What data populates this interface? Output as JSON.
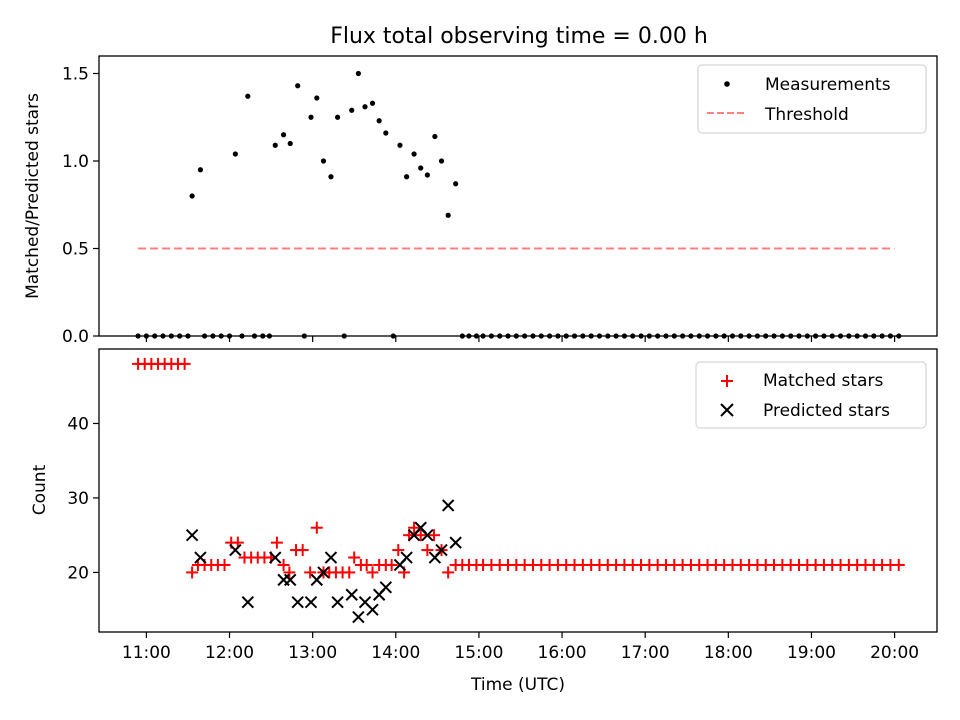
{
  "chart_data": [
    {
      "type": "scatter",
      "title": "Flux total observing time = 0.00 h",
      "xlabel": "",
      "ylabel": "Matched/Predicted stars",
      "xlim": [
        10.43,
        20.51
      ],
      "ylim": [
        0,
        1.6
      ],
      "x_tick_values": [
        11,
        12,
        13,
        14,
        15,
        16,
        17,
        18,
        19,
        20
      ],
      "y_ticks": [
        0.0,
        0.5,
        1.0,
        1.5
      ],
      "y_tick_labels": [
        "0.0",
        "0.5",
        "1.0",
        "1.5"
      ],
      "legend_position": "top-right",
      "series": [
        {
          "name": "Measurements",
          "color": "#000000",
          "marker": "dot",
          "x": [
            10.9,
            11.0,
            11.1,
            11.2,
            11.3,
            11.4,
            11.5,
            11.55,
            11.65,
            11.7,
            11.8,
            11.9,
            12.0,
            12.07,
            12.15,
            12.22,
            12.3,
            12.4,
            12.48,
            12.55,
            12.65,
            12.73,
            12.82,
            12.9,
            12.98,
            13.05,
            13.13,
            13.22,
            13.3,
            13.38,
            13.47,
            13.55,
            13.63,
            13.72,
            13.8,
            13.88,
            13.97,
            14.05,
            14.13,
            14.22,
            14.3,
            14.38,
            14.47,
            14.55,
            14.63,
            14.72,
            14.8,
            14.88,
            14.97,
            15.05,
            15.15,
            15.25,
            15.35,
            15.45,
            15.55,
            15.65,
            15.75,
            15.85,
            15.95,
            16.05,
            16.15,
            16.25,
            16.35,
            16.45,
            16.55,
            16.65,
            16.75,
            16.85,
            16.95,
            17.05,
            17.15,
            17.25,
            17.35,
            17.45,
            17.55,
            17.65,
            17.75,
            17.85,
            17.95,
            18.05,
            18.15,
            18.25,
            18.35,
            18.45,
            18.55,
            18.65,
            18.75,
            18.85,
            18.95,
            19.05,
            19.15,
            19.25,
            19.35,
            19.45,
            19.55,
            19.65,
            19.75,
            19.85,
            19.95,
            20.05
          ],
          "y": [
            0,
            0,
            0,
            0,
            0,
            0,
            0,
            0.8,
            0.95,
            0,
            0,
            0,
            0,
            1.04,
            0,
            1.37,
            0,
            0,
            0,
            1.09,
            1.15,
            1.1,
            1.43,
            0,
            1.25,
            1.36,
            1.0,
            0.91,
            1.25,
            0,
            1.29,
            1.5,
            1.31,
            1.33,
            1.23,
            1.16,
            0,
            1.09,
            0.91,
            1.04,
            0.96,
            0.92,
            1.14,
            1.0,
            0.69,
            0.87,
            0,
            0,
            0,
            0,
            0,
            0,
            0,
            0,
            0,
            0,
            0,
            0,
            0,
            0,
            0,
            0,
            0,
            0,
            0,
            0,
            0,
            0,
            0,
            0,
            0,
            0,
            0,
            0,
            0,
            0,
            0,
            0,
            0,
            0,
            0,
            0,
            0,
            0,
            0,
            0,
            0,
            0,
            0,
            0,
            0,
            0,
            0,
            0,
            0,
            0,
            0,
            0,
            0,
            0
          ]
        },
        {
          "name": "Threshold",
          "color": "#ff7f7f",
          "style": "dashed",
          "x": [
            10.9,
            20.0
          ],
          "y": [
            0.5,
            0.5
          ]
        }
      ]
    },
    {
      "type": "scatter",
      "title": "",
      "xlabel": "Time (UTC)",
      "ylabel": "Count",
      "xlim": [
        10.43,
        20.51
      ],
      "ylim": [
        12,
        50
      ],
      "x_tick_values": [
        11,
        12,
        13,
        14,
        15,
        16,
        17,
        18,
        19,
        20
      ],
      "x_tick_labels": [
        "11:00",
        "12:00",
        "13:00",
        "14:00",
        "15:00",
        "16:00",
        "17:00",
        "18:00",
        "19:00",
        "20:00"
      ],
      "y_ticks": [
        20,
        30,
        40
      ],
      "y_tick_labels": [
        "20",
        "30",
        "40"
      ],
      "legend_position": "top-right",
      "series": [
        {
          "name": "Matched stars",
          "color": "#ff0000",
          "marker": "plus",
          "x": [
            10.9,
            10.98,
            11.06,
            11.14,
            11.22,
            11.3,
            11.38,
            11.46,
            11.55,
            11.62,
            11.7,
            11.78,
            11.86,
            11.94,
            12.02,
            12.1,
            12.18,
            12.26,
            12.34,
            12.42,
            12.5,
            12.57,
            12.65,
            12.72,
            12.8,
            12.88,
            12.97,
            13.05,
            13.13,
            13.2,
            13.28,
            13.36,
            13.44,
            13.5,
            13.58,
            13.65,
            13.72,
            13.8,
            13.88,
            13.95,
            14.03,
            14.1,
            14.16,
            14.22,
            14.3,
            14.38,
            14.46,
            14.55,
            14.63,
            14.72,
            14.8,
            14.88,
            14.97,
            15.05,
            15.15,
            15.25,
            15.35,
            15.45,
            15.55,
            15.65,
            15.75,
            15.85,
            15.95,
            16.05,
            16.15,
            16.25,
            16.35,
            16.45,
            16.55,
            16.65,
            16.75,
            16.85,
            16.95,
            17.05,
            17.15,
            17.25,
            17.35,
            17.45,
            17.55,
            17.65,
            17.75,
            17.85,
            17.95,
            18.05,
            18.15,
            18.25,
            18.35,
            18.45,
            18.55,
            18.65,
            18.75,
            18.85,
            18.95,
            19.05,
            19.15,
            19.25,
            19.35,
            19.45,
            19.55,
            19.65,
            19.75,
            19.85,
            19.95,
            20.05
          ],
          "y": [
            48,
            48,
            48,
            48,
            48,
            48,
            48,
            48,
            20,
            21,
            21,
            21,
            21,
            21,
            24,
            24,
            22,
            22,
            22,
            22,
            22,
            24,
            21,
            20,
            23,
            23,
            20,
            26,
            20,
            20,
            20,
            20,
            20,
            22,
            21,
            21,
            20,
            21,
            21,
            21,
            23,
            20,
            25,
            26,
            25,
            23,
            25,
            23,
            20,
            21,
            21,
            21,
            21,
            21,
            21,
            21,
            21,
            21,
            21,
            21,
            21,
            21,
            21,
            21,
            21,
            21,
            21,
            21,
            21,
            21,
            21,
            21,
            21,
            21,
            21,
            21,
            21,
            21,
            21,
            21,
            21,
            21,
            21,
            21,
            21,
            21,
            21,
            21,
            21,
            21,
            21,
            21,
            21,
            21,
            21,
            21,
            21,
            21,
            21,
            21,
            21,
            21,
            21,
            21
          ]
        },
        {
          "name": "Predicted stars",
          "color": "#000000",
          "marker": "x",
          "x": [
            11.55,
            11.65,
            12.07,
            12.22,
            12.55,
            12.65,
            12.73,
            12.82,
            12.98,
            13.05,
            13.13,
            13.22,
            13.3,
            13.47,
            13.55,
            13.63,
            13.72,
            13.8,
            13.88,
            14.05,
            14.13,
            14.22,
            14.3,
            14.38,
            14.47,
            14.55,
            14.63,
            14.72
          ],
          "y": [
            25,
            22,
            23,
            16,
            22,
            19,
            19,
            16,
            16,
            19,
            20,
            22,
            16,
            17,
            14,
            16,
            15,
            17,
            18,
            21,
            22,
            25,
            26,
            25,
            22,
            23,
            29,
            24
          ]
        }
      ]
    }
  ]
}
